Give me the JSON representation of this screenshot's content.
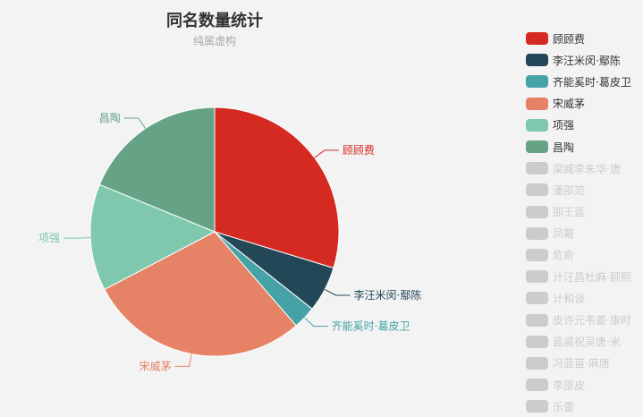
{
  "chart_data": {
    "type": "pie",
    "title": "同名数量统计",
    "subtitle": "纯属虚构",
    "legend_position": "right",
    "slices": [
      {
        "name": "顾顾费",
        "value": 30,
        "color": "#d42a22"
      },
      {
        "name": "李汪米闵·鄢陈",
        "value": 6,
        "color": "#244757"
      },
      {
        "name": "齐能奚时·葛皮卫",
        "value": 3,
        "color": "#45a3a7"
      },
      {
        "name": "宋威茅",
        "value": 29,
        "color": "#e68265"
      },
      {
        "name": "项强",
        "value": 14,
        "color": "#7fc8ad"
      },
      {
        "name": "昌陶",
        "value": 19,
        "color": "#66a386"
      }
    ],
    "inactive_legend": [
      "梁臧李朱华·唐",
      "潘邵范",
      "邵王蓝",
      "凤戴",
      "危俞",
      "计汪昌杜麻·顾熙",
      "计和谈",
      "皮许元韦姜·康时",
      "蓝戚祝吴唐·米",
      "冯蓝苗·麻唐",
      "李邵皮",
      "乐雷"
    ],
    "inactive_color": "#cccccc"
  }
}
